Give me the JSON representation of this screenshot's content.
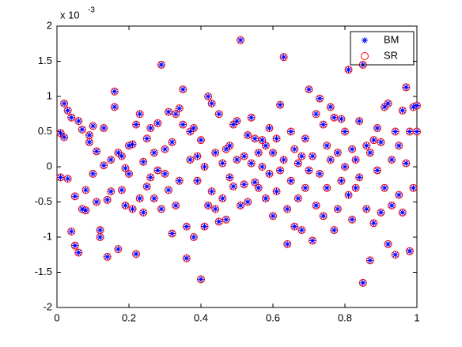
{
  "chart_data": {
    "type": "scatter",
    "y_exponent_base": "x 10",
    "y_exponent": "-3",
    "xlim": [
      0,
      1
    ],
    "ylim": [
      -2,
      2
    ],
    "xticks": [
      0,
      0.2,
      0.4,
      0.6,
      0.8,
      1
    ],
    "yticks": [
      -2,
      -1.5,
      -1,
      -0.5,
      0,
      0.5,
      1,
      1.5,
      2
    ],
    "grid": false,
    "legend": "upper right",
    "x": [
      0.01,
      0.02,
      0.01,
      0.02,
      0.03,
      0.03,
      0.04,
      0.04,
      0.05,
      0.05,
      0.06,
      0.06,
      0.07,
      0.07,
      0.08,
      0.08,
      0.09,
      0.09,
      0.1,
      0.1,
      0.11,
      0.11,
      0.12,
      0.12,
      0.13,
      0.13,
      0.14,
      0.14,
      0.15,
      0.15,
      0.16,
      0.16,
      0.17,
      0.17,
      0.18,
      0.18,
      0.19,
      0.19,
      0.2,
      0.2,
      0.21,
      0.21,
      0.22,
      0.22,
      0.23,
      0.23,
      0.24,
      0.24,
      0.25,
      0.25,
      0.26,
      0.26,
      0.27,
      0.27,
      0.28,
      0.28,
      0.29,
      0.29,
      0.3,
      0.3,
      0.31,
      0.31,
      0.32,
      0.32,
      0.33,
      0.33,
      0.34,
      0.34,
      0.35,
      0.35,
      0.36,
      0.36,
      0.37,
      0.37,
      0.38,
      0.38,
      0.39,
      0.39,
      0.4,
      0.4,
      0.41,
      0.41,
      0.42,
      0.42,
      0.43,
      0.43,
      0.44,
      0.44,
      0.45,
      0.45,
      0.46,
      0.46,
      0.47,
      0.47,
      0.48,
      0.48,
      0.49,
      0.49,
      0.5,
      0.5,
      0.51,
      0.51,
      0.52,
      0.52,
      0.53,
      0.53,
      0.54,
      0.54,
      0.55,
      0.55,
      0.56,
      0.56,
      0.57,
      0.57,
      0.58,
      0.58,
      0.59,
      0.59,
      0.6,
      0.6,
      0.61,
      0.61,
      0.62,
      0.62,
      0.63,
      0.63,
      0.64,
      0.64,
      0.65,
      0.65,
      0.66,
      0.66,
      0.67,
      0.67,
      0.68,
      0.68,
      0.69,
      0.69,
      0.7,
      0.7,
      0.71,
      0.71,
      0.72,
      0.72,
      0.73,
      0.73,
      0.74,
      0.74,
      0.75,
      0.75,
      0.76,
      0.76,
      0.77,
      0.77,
      0.78,
      0.78,
      0.79,
      0.79,
      0.8,
      0.8,
      0.81,
      0.81,
      0.82,
      0.82,
      0.83,
      0.83,
      0.84,
      0.84,
      0.85,
      0.85,
      0.86,
      0.86,
      0.87,
      0.87,
      0.88,
      0.88,
      0.89,
      0.89,
      0.9,
      0.9,
      0.91,
      0.91,
      0.92,
      0.92,
      0.93,
      0.93,
      0.94,
      0.94,
      0.95,
      0.95,
      0.96,
      0.96,
      0.97,
      0.97,
      0.98,
      0.98,
      0.99,
      0.99,
      1,
      1
    ],
    "series": [
      {
        "name": "BM",
        "color": "#0000ff",
        "marker": "*",
        "values": [
          0.48,
          0.9,
          -0.15,
          0.42,
          -0.17,
          0.8,
          0.7,
          -0.92,
          -1.12,
          -0.42,
          0.65,
          -1.22,
          -0.6,
          0.53,
          -0.62,
          -0.33,
          0.45,
          0.35,
          -0.1,
          0.58,
          -0.5,
          0.22,
          -1.0,
          -0.9,
          0.55,
          0.02,
          -0.47,
          -1.28,
          0.1,
          -0.35,
          1.07,
          0.85,
          -1.17,
          0.2,
          -0.33,
          0.15,
          -0.55,
          -0.02,
          -0.1,
          0.3,
          -0.6,
          0.32,
          -1.24,
          0.6,
          -0.45,
          0.75,
          0.07,
          -0.65,
          0.4,
          -0.28,
          0.55,
          -0.15,
          0.2,
          -0.45,
          0.62,
          -0.05,
          1.45,
          -0.6,
          0.25,
          -0.1,
          0.78,
          -0.33,
          -0.95,
          0.35,
          0.75,
          -0.55,
          0.83,
          -0.2,
          1.1,
          0.6,
          -0.85,
          -1.3,
          0.5,
          0.1,
          -1.0,
          0.55,
          -0.2,
          0.15,
          -1.6,
          0.38,
          0.0,
          -0.85,
          1.0,
          -0.55,
          -0.35,
          0.9,
          0.2,
          -0.6,
          0.75,
          -0.78,
          0.05,
          -0.45,
          0.25,
          -0.75,
          0.3,
          -0.15,
          0.6,
          -0.28,
          0.65,
          0.1,
          1.8,
          -0.55,
          0.15,
          -0.25,
          0.45,
          -0.5,
          0.7,
          0.05,
          -0.22,
          0.4,
          0.2,
          -0.3,
          0.38,
          0.0,
          0.3,
          -0.45,
          0.55,
          -0.1,
          0.2,
          -0.7,
          0.4,
          -0.35,
          0.88,
          -0.05,
          1.56,
          0.1,
          -1.1,
          -0.6,
          0.5,
          -0.2,
          0.25,
          -0.85,
          0.05,
          -0.45,
          -0.9,
          0.15,
          -0.3,
          0.4,
          1.1,
          -0.05,
          0.15,
          -1.05,
          0.75,
          -0.55,
          0.97,
          -0.1,
          0.6,
          -0.7,
          0.3,
          -0.3,
          0.85,
          0.1,
          -0.9,
          0.7,
          0.2,
          -0.6,
          0.68,
          -0.2,
          0.5,
          0.0,
          1.38,
          -0.4,
          0.25,
          -0.75,
          0.1,
          -0.3,
          0.65,
          -0.15,
          1.45,
          -1.65,
          0.3,
          -0.6,
          -1.33,
          0.2,
          0.38,
          -0.8,
          -0.05,
          0.55,
          -0.65,
          0.35,
          0.85,
          -0.3,
          0.9,
          -1.1,
          0.1,
          -0.55,
          0.5,
          -1.25,
          0.3,
          -0.4,
          0.8,
          -0.65,
          1.13,
          0.05,
          0.5,
          -1.2,
          0.85,
          -0.3,
          0.87,
          0.5
        ]
      },
      {
        "name": "SR",
        "color": "#ff0000",
        "marker": "o",
        "values": [
          0.48,
          0.9,
          -0.15,
          0.42,
          -0.17,
          0.8,
          0.7,
          -0.92,
          -1.12,
          -0.42,
          0.65,
          -1.22,
          -0.6,
          0.53,
          -0.62,
          -0.33,
          0.45,
          0.35,
          -0.1,
          0.58,
          -0.5,
          0.22,
          -1.0,
          -0.9,
          0.55,
          0.02,
          -0.47,
          -1.28,
          0.1,
          -0.35,
          1.07,
          0.85,
          -1.17,
          0.2,
          -0.33,
          0.15,
          -0.55,
          -0.02,
          -0.1,
          0.3,
          -0.6,
          0.32,
          -1.24,
          0.6,
          -0.45,
          0.75,
          0.07,
          -0.65,
          0.4,
          -0.28,
          0.55,
          -0.15,
          0.2,
          -0.45,
          0.62,
          -0.05,
          1.45,
          -0.6,
          0.25,
          -0.1,
          0.78,
          -0.33,
          -0.95,
          0.35,
          0.75,
          -0.55,
          0.83,
          -0.2,
          1.1,
          0.6,
          -0.85,
          -1.3,
          0.5,
          0.1,
          -1.0,
          0.55,
          -0.2,
          0.15,
          -1.6,
          0.38,
          0.0,
          -0.85,
          1.0,
          -0.55,
          -0.35,
          0.9,
          0.2,
          -0.6,
          0.75,
          -0.78,
          0.05,
          -0.45,
          0.25,
          -0.75,
          0.3,
          -0.15,
          0.6,
          -0.28,
          0.65,
          0.1,
          1.8,
          -0.55,
          0.15,
          -0.25,
          0.45,
          -0.5,
          0.7,
          0.05,
          -0.22,
          0.4,
          0.2,
          -0.3,
          0.38,
          0.0,
          0.3,
          -0.45,
          0.55,
          -0.1,
          0.2,
          -0.7,
          0.4,
          -0.35,
          0.88,
          -0.05,
          1.56,
          0.1,
          -1.1,
          -0.6,
          0.5,
          -0.2,
          0.25,
          -0.85,
          0.05,
          -0.45,
          -0.9,
          0.15,
          -0.3,
          0.4,
          1.1,
          -0.05,
          0.15,
          -1.05,
          0.75,
          -0.55,
          0.97,
          -0.1,
          0.6,
          -0.7,
          0.3,
          -0.3,
          0.85,
          0.1,
          -0.9,
          0.7,
          0.2,
          -0.6,
          0.68,
          -0.2,
          0.5,
          0.0,
          1.38,
          -0.4,
          0.25,
          -0.75,
          0.1,
          -0.3,
          0.65,
          -0.15,
          1.45,
          -1.65,
          0.3,
          -0.6,
          -1.33,
          0.2,
          0.38,
          -0.8,
          -0.05,
          0.55,
          -0.65,
          0.35,
          0.85,
          -0.3,
          0.9,
          -1.1,
          0.1,
          -0.55,
          0.5,
          -1.25,
          0.3,
          -0.4,
          0.8,
          -0.65,
          1.13,
          0.05,
          0.5,
          -1.2,
          0.85,
          -0.3,
          0.87,
          0.5
        ]
      }
    ]
  }
}
